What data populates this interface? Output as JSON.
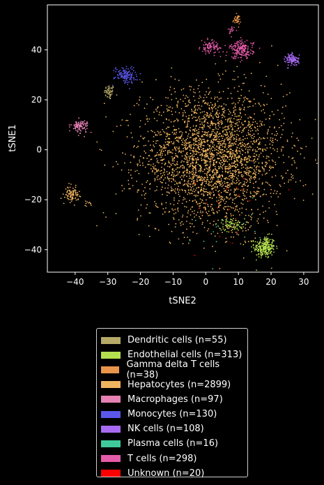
{
  "chart_data": {
    "type": "scatter",
    "xlabel": "tSNE2",
    "ylabel": "tSNE1",
    "xlim": [
      -48.5,
      34.5
    ],
    "ylim": [
      -49,
      58
    ],
    "xticks": [
      -40,
      -30,
      -20,
      -10,
      0,
      10,
      20,
      30
    ],
    "yticks": [
      -40,
      -20,
      0,
      20,
      40
    ],
    "grid": false,
    "legend_position": "below",
    "series": [
      {
        "name": "Dendritic cells (n=55)",
        "color": "#b5aa66",
        "n": 55,
        "clusters": [
          {
            "cx": -29.5,
            "cy": 23,
            "sx": 0.8,
            "sy": 1.5,
            "n": 55
          }
        ]
      },
      {
        "name": "Endothelial cells (n=313)",
        "color": "#b4e04f",
        "n": 313,
        "clusters": [
          {
            "cx": 18,
            "cy": -39,
            "sx": 1.6,
            "sy": 2.2,
            "n": 240
          },
          {
            "cx": 8,
            "cy": -30,
            "sx": 2.0,
            "sy": 1.2,
            "n": 73
          }
        ]
      },
      {
        "name": "Gamma delta T cells (n=38)",
        "color": "#e9964a",
        "n": 38,
        "clusters": [
          {
            "cx": 9.5,
            "cy": 52,
            "sx": 0.6,
            "sy": 1.0,
            "n": 38
          }
        ]
      },
      {
        "name": "Hepatocytes (n=2899)",
        "color": "#efb45f",
        "n": 2899,
        "clusters": [
          {
            "cx": 2,
            "cy": -3,
            "sx": 11,
            "sy": 13,
            "n": 2780
          },
          {
            "cx": -41,
            "cy": -18,
            "sx": 1.0,
            "sy": 1.5,
            "n": 90
          },
          {
            "cx": -36,
            "cy": -21.5,
            "sx": 0.6,
            "sy": 0.5,
            "n": 10
          },
          {
            "cx": 10,
            "cy": -32,
            "sx": 3,
            "sy": 2,
            "n": 19
          }
        ]
      },
      {
        "name": "Macrophages (n=97)",
        "color": "#e681b4",
        "n": 97,
        "clusters": [
          {
            "cx": -38.5,
            "cy": 9.5,
            "sx": 1.3,
            "sy": 1.2,
            "n": 97
          }
        ]
      },
      {
        "name": "Monocytes (n=130)",
        "color": "#5a57ea",
        "n": 130,
        "clusters": [
          {
            "cx": -24.5,
            "cy": 30,
            "sx": 1.7,
            "sy": 1.7,
            "n": 130
          }
        ]
      },
      {
        "name": "NK cells (n=108)",
        "color": "#a86af5",
        "n": 108,
        "clusters": [
          {
            "cx": 26.5,
            "cy": 36,
            "sx": 1.0,
            "sy": 1.2,
            "n": 108
          }
        ]
      },
      {
        "name": "Plasma cells (n=16)",
        "color": "#3fc99a",
        "n": 16,
        "clusters": [
          {
            "cx": 5,
            "cy": -33,
            "sx": 6,
            "sy": 8,
            "n": 16
          }
        ]
      },
      {
        "name": "T cells (n=298)",
        "color": "#e45ba8",
        "n": 298,
        "clusters": [
          {
            "cx": 11,
            "cy": 40,
            "sx": 1.8,
            "sy": 1.8,
            "n": 190
          },
          {
            "cx": 1.5,
            "cy": 41,
            "sx": 1.5,
            "sy": 1.3,
            "n": 90
          },
          {
            "cx": 7.5,
            "cy": 47.5,
            "sx": 0.6,
            "sy": 0.8,
            "n": 18
          }
        ]
      },
      {
        "name": "Unknown (n=20)",
        "color": "#ff0000",
        "n": 20,
        "clusters": [
          {
            "cx": 8,
            "cy": -22,
            "sx": 9,
            "sy": 8,
            "n": 20
          }
        ]
      }
    ]
  }
}
